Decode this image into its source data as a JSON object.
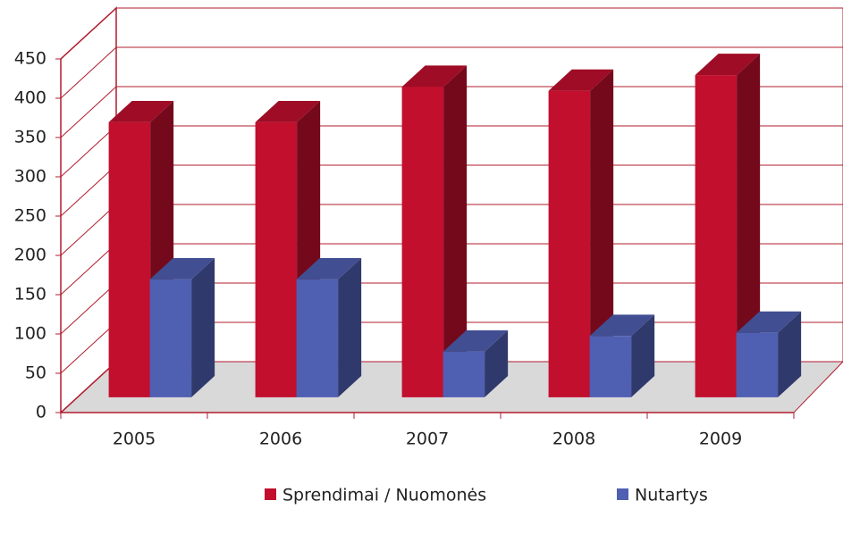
{
  "chart_data": {
    "type": "bar3d",
    "categories": [
      "2005",
      "2006",
      "2007",
      "2008",
      "2009"
    ],
    "series": [
      {
        "name": "Sprendimai / Nuomonės",
        "color": "#c20f2e",
        "values": [
          350,
          350,
          395,
          390,
          410
        ]
      },
      {
        "name": "Nutartys",
        "color": "#4f5fb2",
        "values": [
          150,
          150,
          58,
          78,
          82
        ]
      }
    ],
    "ylim": [
      0,
      450
    ],
    "yticks": [
      0,
      50,
      100,
      150,
      200,
      250,
      300,
      350,
      400,
      450
    ],
    "grid": true
  }
}
